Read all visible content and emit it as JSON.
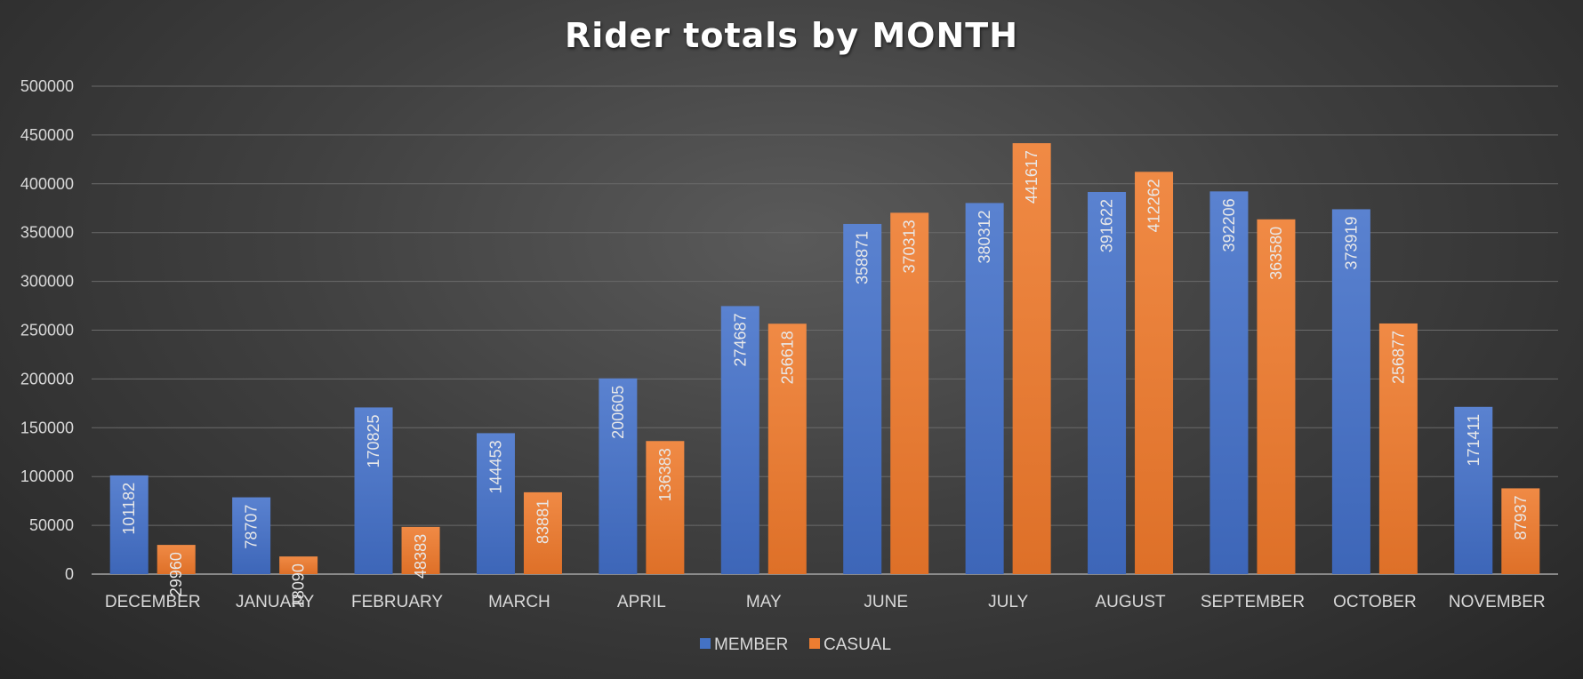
{
  "chart_data": {
    "type": "bar",
    "title": "Rider totals by MONTH",
    "xlabel": "",
    "ylabel": "",
    "ylim": [
      0,
      500000
    ],
    "yticks": [
      0,
      50000,
      100000,
      150000,
      200000,
      250000,
      300000,
      350000,
      400000,
      450000,
      500000
    ],
    "grid": true,
    "legend": "bottom",
    "categories": [
      "DECEMBER",
      "JANUARY",
      "FEBRUARY",
      "MARCH",
      "APRIL",
      "MAY",
      "JUNE",
      "JULY",
      "AUGUST",
      "SEPTEMBER",
      "OCTOBER",
      "NOVEMBER"
    ],
    "series": [
      {
        "name": "MEMBER",
        "color": "#4472c4",
        "values": [
          101182,
          78707,
          170825,
          144453,
          200605,
          274687,
          358871,
          380312,
          391622,
          392206,
          373919,
          171411
        ]
      },
      {
        "name": "CASUAL",
        "color": "#ed7d31",
        "values": [
          29960,
          18090,
          48383,
          83881,
          136383,
          256618,
          370313,
          441617,
          412262,
          363580,
          256877,
          87937
        ]
      }
    ]
  }
}
